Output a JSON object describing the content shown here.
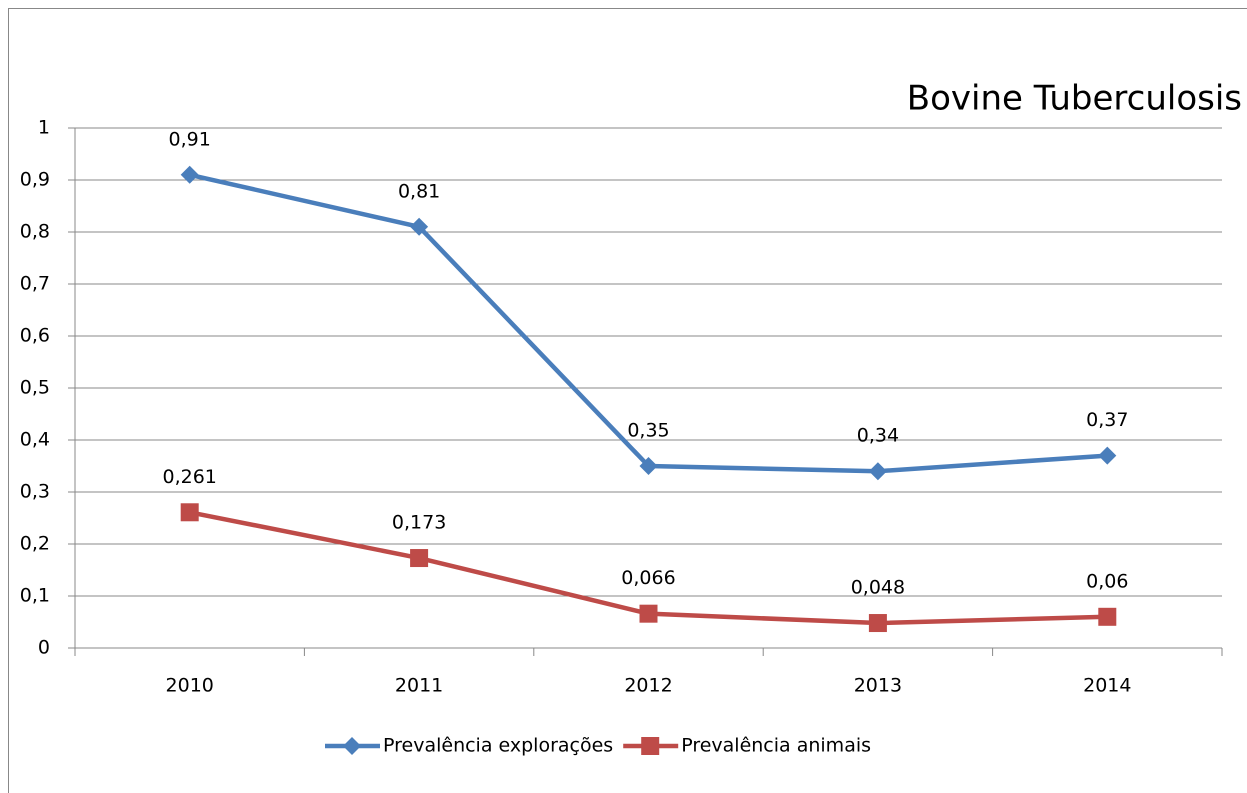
{
  "chart_data": {
    "type": "line",
    "title": "Bovine Tuberculosis",
    "categories": [
      "2010",
      "2011",
      "2012",
      "2013",
      "2014"
    ],
    "series": [
      {
        "name": "Prevalência explorações",
        "color": "#4a7ebb",
        "marker": "diamond",
        "values": [
          0.91,
          0.81,
          0.35,
          0.34,
          0.37
        ],
        "value_labels": [
          "0,91",
          "0,81",
          "0,35",
          "0,34",
          "0,37"
        ]
      },
      {
        "name": "Prevalência animais",
        "color": "#be4b48",
        "marker": "square",
        "values": [
          0.261,
          0.173,
          0.066,
          0.048,
          0.06
        ],
        "value_labels": [
          "0,261",
          "0,173",
          "0,066",
          "0,048",
          "0,06"
        ]
      }
    ],
    "ylim": [
      0,
      1
    ],
    "yticks": [
      0,
      {
        "value": 0.1,
        "label": "0,1"
      },
      {
        "value": 0.2,
        "label": "0,2"
      },
      {
        "value": 0.3,
        "label": "0,3"
      },
      {
        "value": 0.4,
        "label": "0,4"
      },
      {
        "value": 0.5,
        "label": "0,5"
      },
      {
        "value": 0.6,
        "label": "0,6"
      },
      {
        "value": 0.7,
        "label": "0,7"
      },
      {
        "value": 0.8,
        "label": "0,8"
      },
      {
        "value": 0.9,
        "label": "0,9"
      },
      1
    ],
    "grid": true,
    "legend": "bottom"
  }
}
